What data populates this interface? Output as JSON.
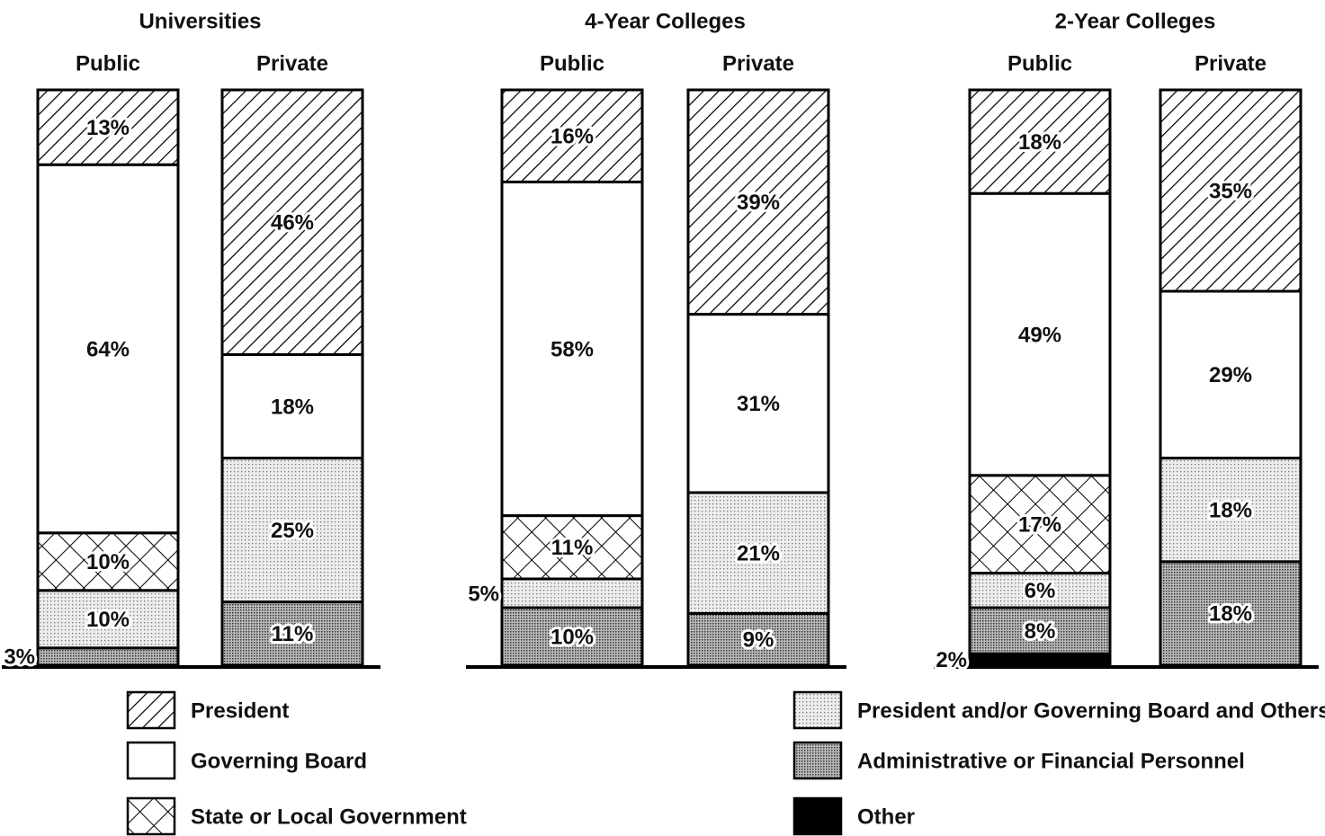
{
  "chart_data": {
    "type": "stacked-bar",
    "groups": [
      "Universities",
      "4-Year Colleges",
      "2-Year Colleges"
    ],
    "categories": [
      "Public",
      "Private",
      "Public",
      "Private",
      "Public",
      "Private"
    ],
    "ylim": [
      0,
      100
    ],
    "series": [
      {
        "name": "President",
        "pattern": "diagonal",
        "color": "#000000",
        "values": [
          13,
          46,
          16,
          39,
          18,
          35
        ],
        "value_labels": [
          "13%",
          "46%",
          "16%",
          "39%",
          "18%",
          "35%"
        ]
      },
      {
        "name": "Governing Board",
        "pattern": "none",
        "color": "#ffffff",
        "values": [
          64,
          18,
          58,
          31,
          49,
          29
        ],
        "value_labels": [
          "64%",
          "18%",
          "58%",
          "31%",
          "49%",
          "29%"
        ]
      },
      {
        "name": "State or Local Government",
        "pattern": "crosshatch",
        "color": "#000000",
        "values": [
          10,
          null,
          11,
          null,
          17,
          null
        ],
        "value_labels": [
          "10%",
          null,
          "11%",
          null,
          "17%",
          null
        ]
      },
      {
        "name": "President and/or Governing Board and Others",
        "pattern": "light-dots",
        "color": "#e6e6e6",
        "values": [
          10,
          25,
          5,
          21,
          6,
          18
        ],
        "value_labels": [
          "10%",
          "25%",
          "5%",
          "21%",
          "6%",
          "18%"
        ]
      },
      {
        "name": "Administrative or Financial Personnel",
        "pattern": "dark-dots",
        "color": "#a0a0a0",
        "values": [
          3,
          11,
          10,
          9,
          8,
          18
        ],
        "value_labels": [
          "3%",
          "11%",
          "10%",
          "9%",
          "8%",
          "18%"
        ]
      },
      {
        "name": "Other",
        "pattern": "solid",
        "color": "#000000",
        "values": [
          null,
          null,
          null,
          null,
          2,
          null
        ],
        "value_labels": [
          null,
          null,
          null,
          null,
          "2%",
          null
        ]
      }
    ]
  }
}
